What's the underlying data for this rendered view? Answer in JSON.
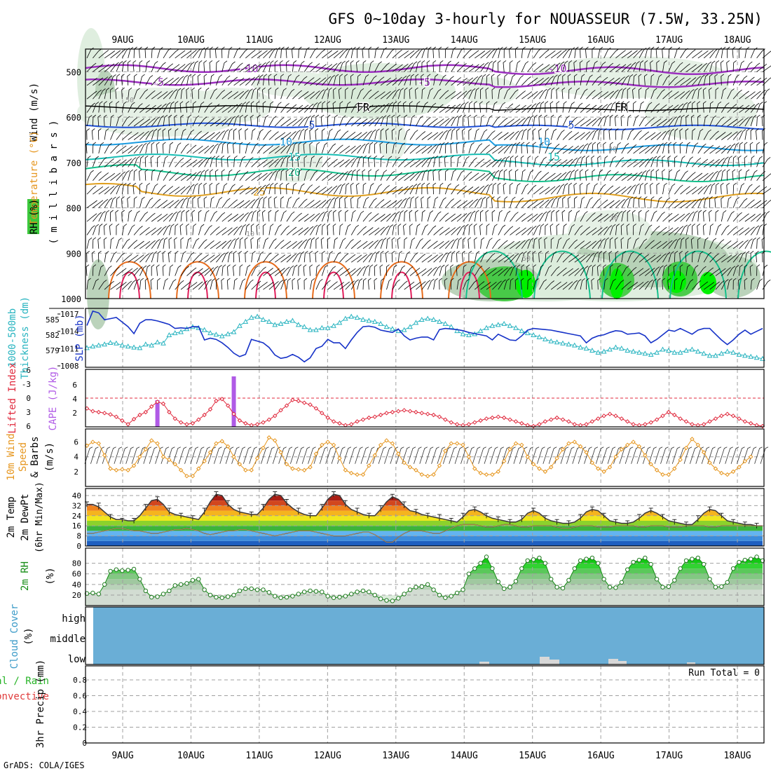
{
  "page": {
    "title": "GFS 0~10day 3-hourly for NOUASSEUR (7.5W, 33.25N)",
    "footer": "GrADS: COLA/IGES"
  },
  "chart_data": {
    "type": "line",
    "x_axis": {
      "categories": [
        "9AUG",
        "10AUG",
        "11AUG",
        "12AUG",
        "13AUG",
        "14AUG",
        "15AUG",
        "16AUG",
        "17AUG",
        "18AUG"
      ]
    },
    "colors": {
      "rh_light": "#dcecdc",
      "rh_mid": "#b4ceb4",
      "rh_high": "#3cc83c",
      "rh_max": "#00f000",
      "temp_neg": "#9b2fbf",
      "temp_freezing": "#000000",
      "temp_5": "#1f4fd6",
      "temp_10": "#1a9be0",
      "temp_15": "#17bdb4",
      "temp_20": "#14c08c",
      "temp_25": "#e0a020",
      "temp_30": "#e66a1a",
      "temp_35": "#e01d5a",
      "slp": "#1632c8",
      "thickness": "#28b4c0",
      "li": "#e0283c",
      "cape": "#b05ae6",
      "wind10m": "#e6961e",
      "rh2m": "#148c14",
      "cloud": "#6aaed6",
      "precip": "#e03c3c"
    },
    "upper_air": {
      "ylabel_lines": [
        "Wind (m/s)",
        "Temperature (°C)",
        "RH (%)",
        "( m i l l i b a r s )"
      ],
      "yticks": [
        500,
        600,
        700,
        800,
        900,
        1000
      ],
      "isotherm_labels": [
        "-10",
        "-5",
        "FR",
        "5",
        "10",
        "15",
        "20",
        "25"
      ],
      "rh_contour_labels": [
        "10",
        "30",
        "50"
      ]
    },
    "slp_thickness": {
      "left_label_lines": [
        "1000-500mb",
        "Thickness (dm)"
      ],
      "right_label": "SLP (mb)",
      "thickness_ticks": [
        585,
        582,
        579
      ],
      "slp_ticks": [
        1017,
        1014,
        1011,
        1008
      ],
      "slp_mb": [
        1015.0,
        1017.5,
        1017.2,
        1016.0,
        1016.2,
        1016.4,
        1015.6,
        1014.8,
        1013.6,
        1015.4,
        1016.0,
        1016.0,
        1015.8,
        1015.5,
        1015.2,
        1014.5,
        1014.6,
        1014.5,
        1014.8,
        1014.8,
        1012.5,
        1012.8,
        1012.6,
        1012.0,
        1011.2,
        1010.2,
        1009.6,
        1010.0,
        1012.6,
        1012.3,
        1012.0,
        1011.2,
        1009.9,
        1009.3,
        1009.5,
        1010.0,
        1009.5,
        1008.7,
        1009.4,
        1011.0,
        1011.4,
        1012.6,
        1012.0,
        1012.0,
        1011.0,
        1012.5,
        1013.8,
        1014.8,
        1014.9,
        1014.7,
        1014.2,
        1014.0,
        1013.8,
        1014.4,
        1013.2,
        1012.5,
        1012.8,
        1013.0,
        1013.0,
        1012.5,
        1014.3,
        1014.5,
        1014.4,
        1014.3,
        1014.1,
        1013.8,
        1013.6,
        1013.4,
        1013.2,
        1012.5,
        1013.5,
        1013.0,
        1012.5,
        1012.4,
        1013.2,
        1014.2,
        1014.5,
        1014.4,
        1014.3,
        1014.2,
        1014.0,
        1013.8,
        1013.6,
        1013.4,
        1013.2,
        1012.0,
        1012.8,
        1013.2,
        1013.4,
        1013.8,
        1014.1,
        1014.0,
        1013.5,
        1013.6,
        1013.7,
        1013.2,
        1012.0,
        1012.6,
        1013.4,
        1014.2,
        1014.0,
        1014.5,
        1014.0,
        1013.5,
        1014.2,
        1014.5,
        1014.5,
        1013.5,
        1012.5,
        1011.7,
        1012.5,
        1013.5,
        1014.2,
        1013.5,
        1014.0,
        1014.5
      ],
      "thickness_dm": [
        579.5,
        579.8,
        580.0,
        580.2,
        580.5,
        580.4,
        580.0,
        579.8,
        579.6,
        579.5,
        580.2,
        580.0,
        580.6,
        580.4,
        582.0,
        582.4,
        582.6,
        583.2,
        583.6,
        583.4,
        583.0,
        582.4,
        582.1,
        581.8,
        582.2,
        582.6,
        583.8,
        584.6,
        585.4,
        585.6,
        585.0,
        584.6,
        584.0,
        584.2,
        584.6,
        584.8,
        584.0,
        583.6,
        583.0,
        583.0,
        583.4,
        583.4,
        583.8,
        584.4,
        585.2,
        585.6,
        585.4,
        585.0,
        584.8,
        584.6,
        584.2,
        583.6,
        583.2,
        582.8,
        583.0,
        583.6,
        584.4,
        585.0,
        585.2,
        585.0,
        584.6,
        584.2,
        583.6,
        582.8,
        582.2,
        582.0,
        582.2,
        582.8,
        583.4,
        583.8,
        584.0,
        584.2,
        583.8,
        583.4,
        582.8,
        582.4,
        582.0,
        581.6,
        581.2,
        580.8,
        580.6,
        580.4,
        580.2,
        580.0,
        579.6,
        579.4,
        579.0,
        578.6,
        578.8,
        579.2,
        579.6,
        579.4,
        579.0,
        578.8,
        578.6,
        578.4,
        578.2,
        578.6,
        579.2,
        579.0,
        578.6,
        578.6,
        579.0,
        579.2,
        578.8,
        578.4,
        578.0,
        578.0,
        578.4,
        578.8,
        578.6,
        578.2,
        578.0,
        577.8,
        577.6,
        577.4
      ]
    },
    "stability": {
      "left_label": "Lifted Index",
      "right_label": "CAPE (J/kg)",
      "li_ticks": [
        -6,
        -3,
        0,
        3,
        6
      ],
      "cape_ticks": [
        2,
        4,
        6
      ],
      "lifted_index": [
        2.2,
        2.8,
        3.0,
        3.2,
        3.5,
        4.0,
        4.8,
        5.6,
        4.5,
        3.6,
        3.0,
        1.8,
        0.8,
        1.2,
        3.0,
        4.4,
        5.2,
        5.6,
        5.4,
        4.6,
        3.6,
        2.4,
        0.6,
        0.2,
        1.6,
        3.4,
        4.8,
        5.4,
        5.8,
        5.6,
        5.2,
        4.6,
        3.8,
        2.6,
        1.6,
        0.4,
        0.6,
        1.0,
        1.4,
        2.2,
        3.2,
        4.2,
        5.0,
        5.4,
        5.8,
        5.6,
        5.0,
        4.6,
        4.2,
        4.0,
        3.6,
        3.2,
        3.0,
        2.8,
        2.6,
        2.8,
        3.0,
        3.2,
        3.4,
        3.6,
        4.0,
        4.6,
        5.2,
        5.6,
        5.8,
        5.6,
        5.2,
        4.8,
        4.4,
        4.2,
        4.0,
        4.2,
        4.6,
        5.0,
        5.4,
        5.8,
        6.0,
        5.6,
        5.0,
        4.6,
        4.2,
        4.6,
        5.0,
        5.6,
        5.8,
        5.6,
        5.0,
        4.4,
        3.8,
        3.4,
        3.8,
        4.4,
        5.0,
        5.6,
        5.8,
        5.6,
        5.2,
        4.6,
        3.8,
        3.0,
        3.6,
        4.4,
        5.0,
        5.6,
        5.8,
        5.6,
        5.0,
        4.4,
        3.8,
        3.4,
        3.8,
        4.4,
        5.0,
        5.4,
        5.8,
        6.0
      ],
      "cape": [
        0,
        0,
        0,
        0,
        0,
        0,
        0,
        0,
        0,
        0,
        0,
        0,
        3.8,
        0,
        0,
        0,
        0,
        0,
        0,
        0,
        0,
        0,
        0,
        0,
        0,
        7.2,
        0,
        0,
        0,
        0,
        0,
        0,
        0,
        0,
        0,
        0,
        0,
        0,
        0,
        0,
        0,
        0,
        0,
        0,
        0,
        0,
        0,
        0,
        0,
        0,
        0,
        0,
        0,
        0,
        0,
        0,
        0,
        0,
        0,
        0,
        0,
        0,
        0,
        0,
        0,
        0,
        0,
        0,
        0,
        0,
        0,
        0,
        0,
        0,
        0,
        0,
        0,
        0,
        0,
        0,
        0,
        0,
        0,
        0,
        0,
        0,
        0,
        0,
        0,
        0,
        0,
        0,
        0,
        0,
        0,
        0,
        0,
        0,
        0,
        0,
        0,
        0,
        0,
        0,
        0,
        0,
        0,
        0,
        0,
        0,
        0,
        0,
        0,
        0,
        0,
        0
      ]
    },
    "wind10m": {
      "label_lines": [
        "10m Wind",
        "Speed",
        "& Barbs",
        "(m/s)"
      ],
      "yticks": [
        2,
        4,
        6
      ],
      "speed": [
        5.5,
        6.0,
        5.8,
        4.2,
        2.4,
        2.2,
        2.3,
        2.2,
        2.8,
        4.0,
        5.0,
        6.2,
        5.8,
        4.0,
        3.6,
        3.0,
        2.2,
        1.4,
        1.4,
        2.4,
        3.4,
        4.6,
        5.8,
        6.1,
        5.4,
        4.0,
        3.0,
        2.2,
        2.2,
        3.8,
        5.2,
        6.6,
        6.2,
        4.6,
        3.0,
        2.4,
        2.3,
        2.2,
        2.6,
        4.4,
        5.6,
        6.0,
        5.6,
        3.8,
        2.2,
        1.8,
        1.6,
        1.6,
        2.8,
        4.2,
        5.6,
        6.2,
        5.8,
        4.4,
        3.2,
        2.6,
        2.2,
        1.6,
        1.4,
        1.6,
        2.8,
        4.8,
        5.8,
        5.8,
        5.6,
        4.0,
        2.4,
        1.8,
        1.6,
        1.6,
        2.0,
        3.4,
        5.0,
        5.8,
        5.6,
        4.0,
        3.0,
        2.4,
        2.0,
        2.6,
        3.8,
        5.0,
        5.8,
        6.0,
        5.4,
        4.6,
        3.2,
        2.4,
        2.0,
        2.6,
        4.0,
        5.0,
        5.6,
        6.0,
        5.4,
        4.2,
        3.0,
        2.2,
        1.6,
        1.6,
        2.4,
        3.6,
        5.2,
        6.4,
        5.6,
        4.6,
        3.2,
        2.4,
        1.8,
        1.6,
        2.0,
        2.6,
        3.4,
        4.0
      ]
    },
    "temp2m": {
      "label_lines": [
        "2m Temp",
        "2m DewPt",
        "(6hr Min/Max)"
      ],
      "yticks": [
        0,
        8,
        16,
        24,
        32,
        40
      ],
      "temperature": [
        33,
        33,
        31,
        27,
        23,
        21,
        21,
        20,
        20,
        24,
        30,
        36,
        37,
        33,
        27,
        25,
        24,
        23,
        22,
        21,
        27,
        35,
        41,
        40,
        33,
        29,
        27,
        26,
        25,
        25,
        30,
        37,
        41,
        40,
        34,
        30,
        27,
        25,
        24,
        24,
        30,
        37,
        41,
        40,
        33,
        29,
        27,
        25,
        24,
        24,
        29,
        35,
        39,
        37,
        32,
        28,
        27,
        25,
        24,
        23,
        22,
        21,
        20,
        19,
        23,
        28,
        29,
        27,
        24,
        22,
        21,
        20,
        19,
        19,
        21,
        26,
        28,
        26,
        22,
        20,
        19,
        18,
        18,
        19,
        22,
        27,
        29,
        28,
        24,
        20,
        19,
        18,
        18,
        19,
        22,
        26,
        28,
        26,
        23,
        20,
        19,
        18,
        17,
        17,
        21,
        26,
        29,
        28,
        24,
        20,
        19,
        18,
        17,
        17,
        16,
        16
      ],
      "dewpoint": [
        10,
        10,
        11,
        12,
        13,
        14,
        14,
        13,
        12,
        12,
        11,
        10,
        10,
        11,
        12,
        13,
        13,
        14,
        13,
        12,
        10,
        9,
        10,
        11,
        12,
        12,
        13,
        13,
        12,
        11,
        10,
        9,
        8,
        9,
        10,
        11,
        12,
        12,
        12,
        11,
        10,
        9,
        8,
        8,
        8,
        9,
        10,
        11,
        11,
        9,
        6,
        3,
        3,
        7,
        10,
        12,
        12,
        12,
        11,
        10,
        10,
        12,
        14,
        16,
        17,
        17,
        17,
        16,
        15,
        15,
        16,
        17,
        17,
        16,
        15,
        15,
        16,
        16,
        16,
        16,
        15,
        14,
        14,
        15,
        16,
        16,
        16,
        15,
        15,
        15,
        16,
        16,
        16,
        16,
        15,
        15,
        16,
        16,
        16,
        15,
        15,
        15,
        16,
        16,
        16,
        16,
        15,
        15,
        16,
        16,
        16,
        16,
        16,
        16,
        16,
        16
      ],
      "max_6hr": [
        35,
        35,
        34,
        30,
        25,
        23,
        22,
        21,
        22,
        27,
        33,
        38,
        39,
        35,
        30,
        27,
        26,
        25,
        24,
        24,
        30,
        38,
        43,
        42,
        36,
        32,
        30,
        28,
        27,
        28,
        33,
        40,
        43,
        42,
        37,
        33,
        30,
        28,
        26,
        27,
        33,
        40,
        43,
        42,
        36,
        32,
        30,
        27,
        26,
        27,
        32,
        38,
        41,
        40,
        35,
        31,
        29,
        27,
        26,
        26,
        25,
        23,
        22,
        22,
        26,
        30,
        31,
        29,
        26,
        24,
        23,
        22,
        21,
        21,
        24,
        28,
        30,
        28,
        24,
        22,
        21,
        20,
        20,
        21,
        25,
        29,
        31,
        30,
        26,
        22,
        21,
        20,
        20,
        21,
        25,
        28,
        30,
        28,
        25,
        22,
        21,
        20,
        19,
        19,
        24,
        28,
        31,
        30,
        26,
        22,
        21,
        20,
        19,
        19,
        18,
        18
      ],
      "min_6hr": [
        31,
        31,
        29,
        25,
        21,
        19,
        19,
        18,
        18,
        22,
        28,
        34,
        35,
        31,
        25,
        23,
        22,
        21,
        20,
        19,
        25,
        33,
        39,
        38,
        31,
        27,
        25,
        24,
        23,
        23,
        28,
        35,
        39,
        38,
        32,
        28,
        25,
        23,
        22,
        22,
        28,
        35,
        39,
        38,
        31,
        27,
        25,
        23,
        22,
        22,
        27,
        33,
        37,
        35,
        30,
        26,
        25,
        23,
        22,
        21,
        20,
        19,
        18,
        17,
        21,
        26,
        27,
        25,
        22,
        20,
        19,
        18,
        17,
        17,
        19,
        24,
        26,
        24,
        20,
        18,
        17,
        16,
        16,
        17,
        20,
        25,
        27,
        26,
        22,
        18,
        17,
        16,
        16,
        17,
        20,
        24,
        26,
        24,
        21,
        18,
        17,
        16,
        15,
        15,
        19,
        24,
        27,
        26,
        22,
        18,
        17,
        16,
        15,
        15,
        14,
        14
      ]
    },
    "rh2m": {
      "label_lines": [
        "2m RH",
        "(%)"
      ],
      "yticks": [
        20,
        40,
        60,
        80
      ],
      "rh": [
        23,
        24,
        22,
        40,
        65,
        68,
        66,
        67,
        69,
        50,
        28,
        16,
        17,
        22,
        28,
        38,
        40,
        42,
        48,
        50,
        30,
        20,
        16,
        15,
        17,
        20,
        28,
        32,
        32,
        30,
        30,
        25,
        18,
        15,
        16,
        18,
        22,
        26,
        28,
        27,
        26,
        18,
        15,
        16,
        18,
        22,
        26,
        28,
        26,
        20,
        13,
        10,
        9,
        14,
        22,
        30,
        35,
        36,
        40,
        30,
        20,
        15,
        18,
        24,
        30,
        60,
        70,
        80,
        92,
        70,
        45,
        32,
        35,
        46,
        70,
        85,
        87,
        90,
        80,
        50,
        35,
        33,
        48,
        70,
        85,
        88,
        90,
        80,
        50,
        35,
        34,
        44,
        68,
        82,
        86,
        90,
        78,
        50,
        35,
        36,
        48,
        70,
        85,
        88,
        90,
        78,
        50,
        35,
        36,
        44,
        70,
        82,
        86,
        88,
        92,
        85
      ]
    },
    "cloud": {
      "label_lines": [
        "Cloud Cover",
        "(%)"
      ],
      "level_labels": [
        "high",
        "middle",
        "low"
      ]
    },
    "precip": {
      "label_lines": [
        "Total / Rain",
        "Convective",
        "3hr Precip (mm)"
      ],
      "yticks": [
        0,
        0.2,
        0.4,
        0.6,
        0.8
      ],
      "run_total": "Run Total = 0"
    }
  }
}
